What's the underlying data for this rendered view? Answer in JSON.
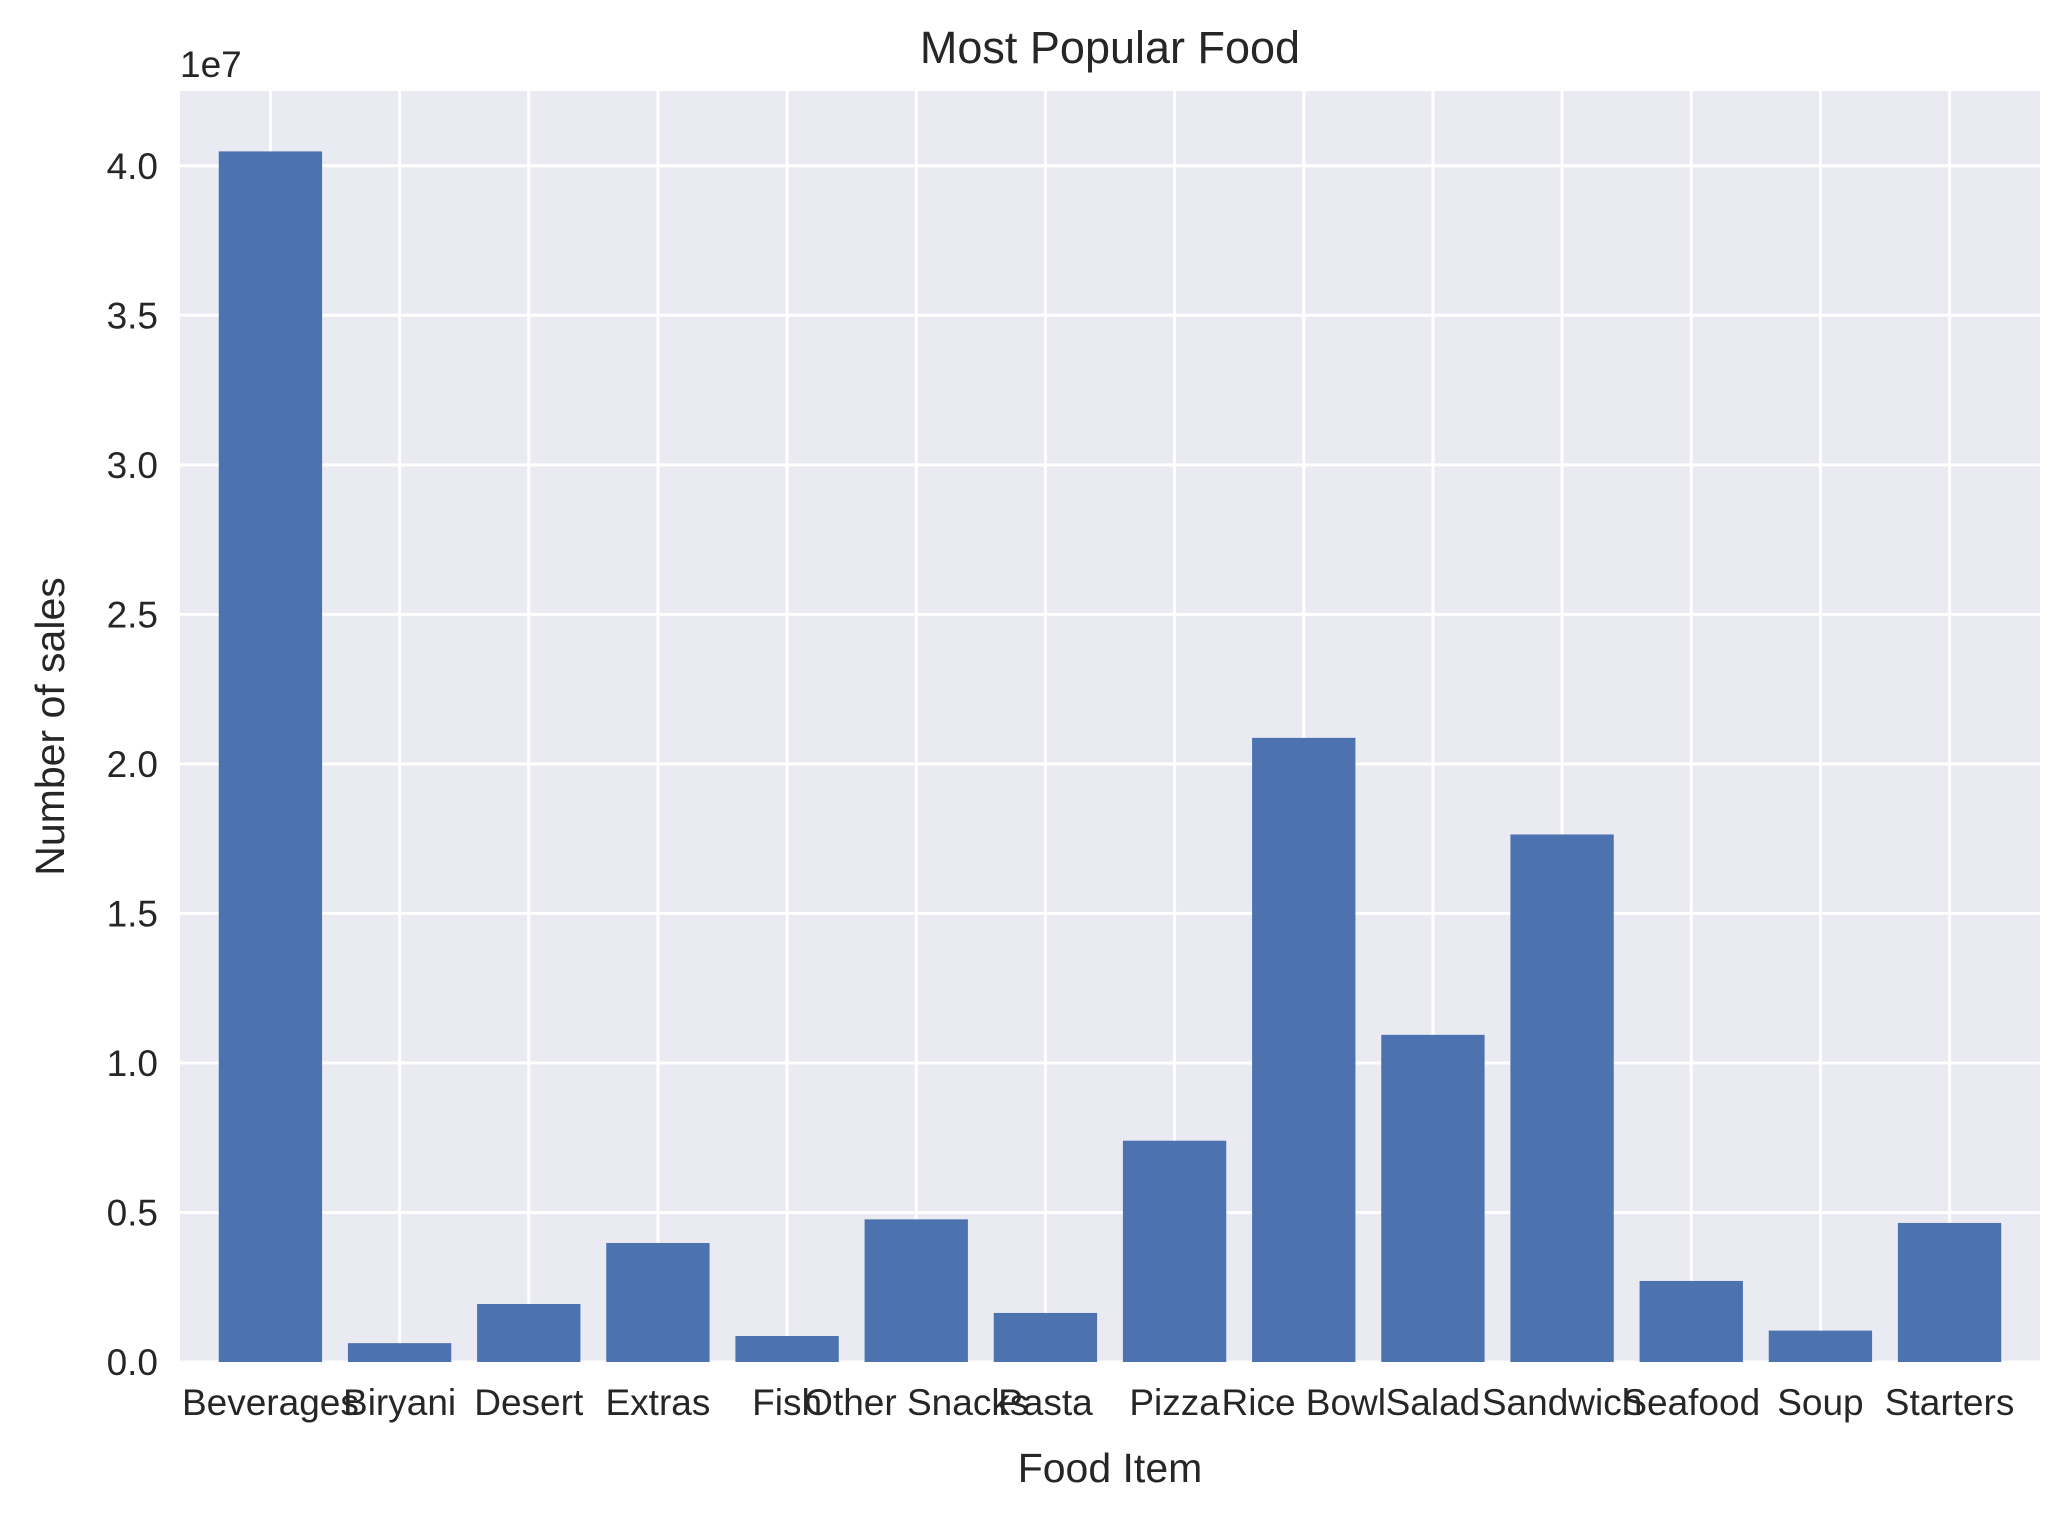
{
  "chart_data": {
    "type": "bar",
    "title": "Most Popular Food",
    "xlabel": "Food Item",
    "ylabel": "Number of sales",
    "y_offset_label": "1e7",
    "categories": [
      "Beverages",
      "Biryani",
      "Desert",
      "Extras",
      "Fish",
      "Other Snacks",
      "Pasta",
      "Pizza",
      "Rice Bowl",
      "Salad",
      "Sandwich",
      "Seafood",
      "Soup",
      "Starters"
    ],
    "values": [
      40480000,
      630000,
      1940000,
      3980000,
      870000,
      4770000,
      1640000,
      7400000,
      20870000,
      10940000,
      17640000,
      2710000,
      1050000,
      4650000
    ],
    "yticks": [
      0,
      5000000,
      10000000,
      15000000,
      20000000,
      25000000,
      30000000,
      35000000,
      40000000
    ],
    "ytick_labels": [
      "0.0",
      "0.5",
      "1.0",
      "1.5",
      "2.0",
      "2.5",
      "3.0",
      "3.5",
      "4.0"
    ],
    "ylim": [
      0,
      42500000
    ],
    "grid": true,
    "colors": {
      "bar": "#4c72b0",
      "plot_background": "#eaeaf2",
      "grid": "#ffffff",
      "text": "#262626"
    }
  }
}
